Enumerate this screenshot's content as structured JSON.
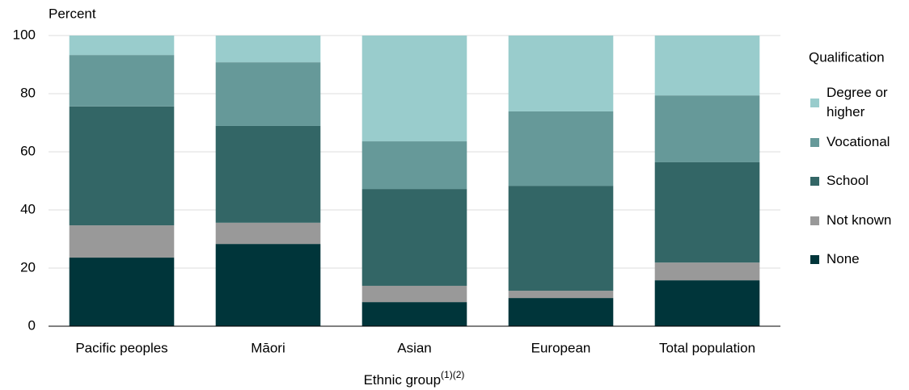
{
  "chart_data": {
    "type": "stacked_bar",
    "ylabel": "Percent",
    "xlabel": "Ethnic group",
    "xlabel_note": "(1)(2)",
    "legend_title": "Qualification",
    "legend_position": "right",
    "grid": true,
    "categories": [
      "Pacific peoples",
      "Māori",
      "Asian",
      "European",
      "Total population"
    ],
    "series": [
      {
        "name": "None",
        "color": "#00353a",
        "values": [
          23.6,
          28.3,
          8.3,
          9.7,
          15.8
        ]
      },
      {
        "name": "Not known",
        "color": "#999999",
        "values": [
          11.1,
          7.3,
          5.6,
          2.5,
          6.1
        ]
      },
      {
        "name": "School",
        "color": "#336666",
        "values": [
          40.9,
          33.3,
          33.3,
          36.1,
          34.5
        ]
      },
      {
        "name": "Vocational",
        "color": "#669999",
        "values": [
          17.7,
          21.9,
          16.4,
          25.6,
          23.0
        ]
      },
      {
        "name": "Degree or higher",
        "color": "#99cccc",
        "values": [
          6.7,
          9.2,
          36.4,
          26.1,
          20.6
        ]
      }
    ],
    "ylim": [
      0,
      100
    ],
    "yticks": [
      0,
      20,
      40,
      60,
      80,
      100
    ]
  }
}
